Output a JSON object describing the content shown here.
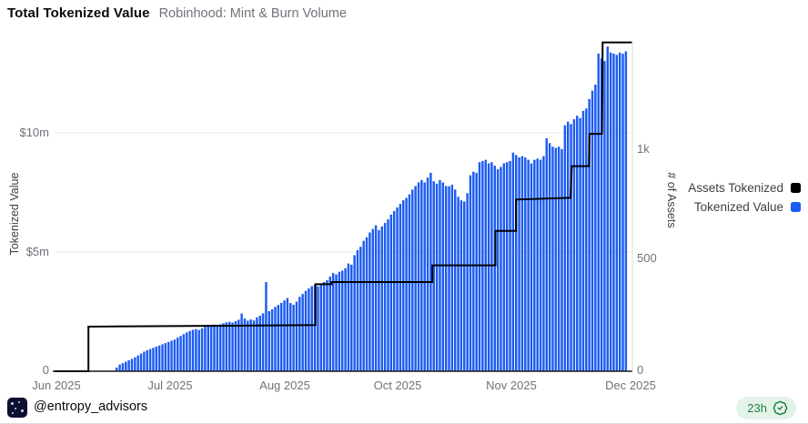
{
  "header": {
    "title": "Total Tokenized Value",
    "subtitle": "Robinhood: Mint & Burn Volume"
  },
  "colors": {
    "bar_blue": "#1d5cf2",
    "line_black": "#000000",
    "grid": "#e8e8e8",
    "axis_line": "#18181b",
    "right_axis_line": "#d9dce1",
    "badge_green": "#1b7f43",
    "badge_bg": "#e4f3ea",
    "avatar_bg": "#0c1030"
  },
  "chart_data": {
    "type": "bar",
    "title": "Total Tokenized Value",
    "subtitle": "Robinhood: Mint & Burn Volume",
    "x_ticks": [
      "Jun 2025",
      "Jul 2025",
      "Aug 2025",
      "Oct 2025",
      "Nov 2025",
      "Dec 2025"
    ],
    "left_axis": {
      "label": "Tokenized Value",
      "ticks": [
        "$10m",
        "$5m",
        "0"
      ],
      "tick_values_musd": [
        10,
        5,
        0
      ],
      "max_musd": 13.85
    },
    "right_axis": {
      "label": "# of Assets",
      "ticks": [
        "1k",
        "500",
        "0"
      ],
      "tick_values": [
        1000,
        500,
        0
      ],
      "max": 1480
    },
    "grid": "horizontal-only",
    "legend_position": "right",
    "legend": [
      {
        "label": "Assets Tokenized",
        "color": "#000000"
      },
      {
        "label": "Tokenized Value",
        "color": "#1d5cf2"
      }
    ],
    "series": [
      {
        "name": "Tokenized Value",
        "type": "bar",
        "axis": "left",
        "unit": "million USD",
        "color": "#1d5cf2",
        "values_musd": [
          0.15,
          0.28,
          0.34,
          0.4,
          0.46,
          0.52,
          0.58,
          0.66,
          0.74,
          0.82,
          0.88,
          0.93,
          0.98,
          1.03,
          1.08,
          1.13,
          1.18,
          1.23,
          1.28,
          1.33,
          1.41,
          1.48,
          1.56,
          1.63,
          1.69,
          1.74,
          1.77,
          1.73,
          1.8,
          1.86,
          1.91,
          1.94,
          1.96,
          1.93,
          1.97,
          2.01,
          2.05,
          2.07,
          2.04,
          2.1,
          2.16,
          2.42,
          2.21,
          2.12,
          2.17,
          2.13,
          2.26,
          2.33,
          2.43,
          3.74,
          2.52,
          2.6,
          2.7,
          2.78,
          2.87,
          2.97,
          3.07,
          2.86,
          2.79,
          2.92,
          3.12,
          3.24,
          3.37,
          3.47,
          3.57,
          3.63,
          3.56,
          3.66,
          3.74,
          3.82,
          3.97,
          4.12,
          4.06,
          4.17,
          4.22,
          4.32,
          4.52,
          4.47,
          4.87,
          5.08,
          5.22,
          5.47,
          5.62,
          5.82,
          5.97,
          6.12,
          5.92,
          6.07,
          6.22,
          6.37,
          6.57,
          6.72,
          6.87,
          7.02,
          7.17,
          7.27,
          7.42,
          7.62,
          7.77,
          7.92,
          8.02,
          7.92,
          8.12,
          8.32,
          7.97,
          7.87,
          8.02,
          7.92,
          7.77,
          7.76,
          7.82,
          7.62,
          7.32,
          7.17,
          7.12,
          7.47,
          8.22,
          8.37,
          8.32,
          8.77,
          8.82,
          8.87,
          8.72,
          8.77,
          8.62,
          8.47,
          8.57,
          8.72,
          8.77,
          8.82,
          9.17,
          9.07,
          8.97,
          9.02,
          8.97,
          8.87,
          8.72,
          8.87,
          8.92,
          8.87,
          9.02,
          9.77,
          9.57,
          9.42,
          9.37,
          9.42,
          9.32,
          10.32,
          10.47,
          10.37,
          10.57,
          10.72,
          10.62,
          10.92,
          11.02,
          11.42,
          11.77,
          12.02,
          13.32,
          13.12,
          13.02,
          13.62,
          13.37,
          13.32,
          13.27,
          13.37,
          13.32,
          13.42
        ]
      },
      {
        "name": "Assets Tokenized",
        "type": "step-line",
        "axis": "right",
        "unit": "assets",
        "color": "#000000",
        "step_points": [
          [
            0.0,
            0
          ],
          [
            0.059,
            0
          ],
          [
            0.059,
            200
          ],
          [
            0.3,
            204
          ],
          [
            0.455,
            207
          ],
          [
            0.455,
            390
          ],
          [
            0.483,
            390
          ],
          [
            0.483,
            400
          ],
          [
            0.659,
            400
          ],
          [
            0.659,
            475
          ],
          [
            0.769,
            475
          ],
          [
            0.769,
            630
          ],
          [
            0.805,
            630
          ],
          [
            0.805,
            770
          ],
          [
            0.9,
            778
          ],
          [
            0.902,
            920
          ],
          [
            0.932,
            920
          ],
          [
            0.933,
            1065
          ],
          [
            0.955,
            1065
          ],
          [
            0.956,
            1475
          ],
          [
            1.007,
            1475
          ]
        ]
      }
    ]
  },
  "footer": {
    "handle": "@entropy_advisors",
    "badge_time": "23h"
  }
}
